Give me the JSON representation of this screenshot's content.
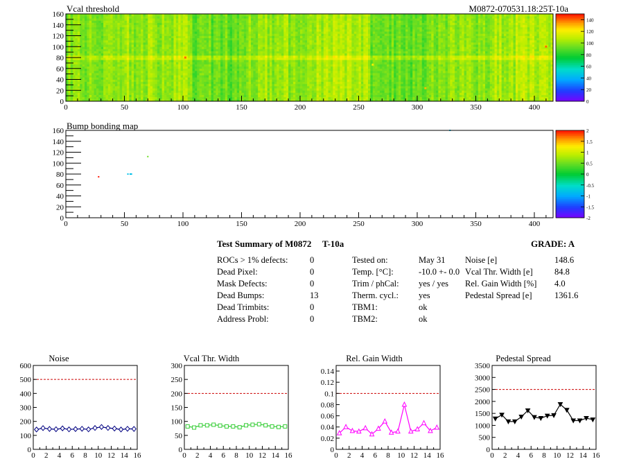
{
  "header": {
    "vcal_title": "Vcal threshold",
    "module_run": "M0872-070531.18:25T-10a",
    "bump_title": "Bump bonding map"
  },
  "colors": {
    "reference_line": "#cc0000",
    "noise_series": "#000080",
    "vcal_width_series": "#33cc33",
    "gain_width_series": "#ff00ff",
    "pedestal_series": "#000000"
  },
  "summary": {
    "title_left": "Test Summary of M0872",
    "title_mid": "T-10a",
    "grade_label": "GRADE:  A",
    "defects": [
      {
        "label": "ROCs > 1% defects:",
        "value": "0"
      },
      {
        "label": "Dead Pixel:",
        "value": "0"
      },
      {
        "label": "Mask Defects:",
        "value": "0"
      },
      {
        "label": "Dead Bumps:",
        "value": "13"
      },
      {
        "label": "Dead Trimbits:",
        "value": "0"
      },
      {
        "label": "Address Probl:",
        "value": "0"
      }
    ],
    "conditions": [
      {
        "label": "Tested on:",
        "value": "May 31"
      },
      {
        "label": "Temp. [°C]:",
        "value": "-10.0 +- 0.0"
      },
      {
        "label": "Trim / phCal:",
        "value": "yes / yes"
      },
      {
        "label": "Therm. cycl.:",
        "value": "yes"
      },
      {
        "label": "TBM1:",
        "value": "ok"
      },
      {
        "label": "TBM2:",
        "value": "ok"
      }
    ],
    "metrics": [
      {
        "label": "Noise [e]",
        "value": "148.6"
      },
      {
        "label": "Vcal Thr. Width [e]",
        "value": "84.8"
      },
      {
        "label": "Rel. Gain Width [%]",
        "value": "4.0"
      },
      {
        "label": "Pedestal Spread [e]",
        "value": "1361.6"
      }
    ]
  },
  "chart_data": [
    {
      "type": "heatmap",
      "title": "Vcal threshold",
      "x_ticks": [
        0,
        50,
        100,
        150,
        200,
        250,
        300,
        350,
        400
      ],
      "y_ticks": [
        0,
        20,
        40,
        60,
        80,
        100,
        120,
        140,
        160
      ],
      "xlim": [
        0,
        416
      ],
      "ylim": [
        0,
        160
      ],
      "colorbar_ticks": [
        0,
        20,
        40,
        60,
        80,
        100,
        120,
        140
      ],
      "colorbar_range": [
        0,
        150
      ],
      "typical_value": 100,
      "hotspots": [
        {
          "x": 102,
          "y": 80,
          "v": 140
        },
        {
          "x": 262,
          "y": 67,
          "v": 120
        },
        {
          "x": 307,
          "y": 24,
          "v": 130
        },
        {
          "x": 410,
          "y": 100,
          "v": 140
        }
      ]
    },
    {
      "type": "heatmap",
      "title": "Bump bonding map",
      "x_ticks": [
        0,
        50,
        100,
        150,
        200,
        250,
        300,
        350,
        400
      ],
      "y_ticks": [
        0,
        20,
        40,
        60,
        80,
        100,
        120,
        140,
        160
      ],
      "xlim": [
        0,
        416
      ],
      "ylim": [
        0,
        160
      ],
      "colorbar_ticks": [
        -2,
        -1.5,
        -1,
        -0.5,
        0,
        0.5,
        1,
        1.5,
        2
      ],
      "colorbar_range": [
        -2,
        2
      ],
      "points": [
        {
          "x": 28,
          "y": 75,
          "v": 2
        },
        {
          "x": 53,
          "y": 80,
          "v": -0.8
        },
        {
          "x": 55,
          "y": 80,
          "v": -0.8
        },
        {
          "x": 56,
          "y": 80,
          "v": -0.8
        },
        {
          "x": 70,
          "y": 112,
          "v": 0.5
        },
        {
          "x": 328,
          "y": 160,
          "v": -0.8
        }
      ]
    },
    {
      "type": "line",
      "title": "Noise",
      "x": [
        0.5,
        1.5,
        2.5,
        3.5,
        4.5,
        5.5,
        6.5,
        7.5,
        8.5,
        9.5,
        10.5,
        11.5,
        12.5,
        13.5,
        14.5,
        15.5
      ],
      "values": [
        142,
        152,
        146,
        144,
        150,
        143,
        145,
        147,
        143,
        153,
        160,
        153,
        149,
        142,
        147,
        146
      ],
      "xlim": [
        0,
        16
      ],
      "ylim": [
        0,
        600
      ],
      "x_ticks": [
        0,
        2,
        4,
        6,
        8,
        10,
        12,
        14,
        16
      ],
      "y_ticks": [
        0,
        100,
        200,
        300,
        400,
        500,
        600
      ],
      "reference_line": 500,
      "marker": "diamond"
    },
    {
      "type": "line",
      "title": "Vcal Thr. Width",
      "x": [
        0.5,
        1.5,
        2.5,
        3.5,
        4.5,
        5.5,
        6.5,
        7.5,
        8.5,
        9.5,
        10.5,
        11.5,
        12.5,
        13.5,
        14.5,
        15.5
      ],
      "values": [
        82,
        78,
        86,
        86,
        88,
        85,
        82,
        82,
        79,
        86,
        88,
        90,
        86,
        82,
        80,
        82
      ],
      "xlim": [
        0,
        16
      ],
      "ylim": [
        0,
        300
      ],
      "x_ticks": [
        0,
        2,
        4,
        6,
        8,
        10,
        12,
        14,
        16
      ],
      "y_ticks": [
        0,
        50,
        100,
        150,
        200,
        250,
        300
      ],
      "reference_line": 200,
      "marker": "square"
    },
    {
      "type": "line",
      "title": "Rel. Gain Width",
      "x": [
        0.5,
        1.5,
        2.5,
        3.5,
        4.5,
        5.5,
        6.5,
        7.5,
        8.5,
        9.5,
        10.5,
        11.5,
        12.5,
        13.5,
        14.5,
        15.5
      ],
      "values": [
        0.029,
        0.04,
        0.033,
        0.032,
        0.038,
        0.027,
        0.037,
        0.05,
        0.03,
        0.032,
        0.08,
        0.032,
        0.036,
        0.047,
        0.033,
        0.039
      ],
      "xlim": [
        0,
        16
      ],
      "ylim": [
        0,
        0.15
      ],
      "x_ticks": [
        0,
        2,
        4,
        6,
        8,
        10,
        12,
        14,
        16
      ],
      "y_ticks": [
        0,
        0.02,
        0.04,
        0.06,
        0.08,
        0.1,
        0.12,
        0.14
      ],
      "reference_line": 0.1,
      "marker": "triangle"
    },
    {
      "type": "line",
      "title": "Pedestal Spread",
      "x": [
        0.5,
        1.5,
        2.5,
        3.5,
        4.5,
        5.5,
        6.5,
        7.5,
        8.5,
        9.5,
        10.5,
        11.5,
        12.5,
        13.5,
        14.5,
        15.5
      ],
      "values": [
        1280,
        1440,
        1160,
        1160,
        1360,
        1620,
        1340,
        1300,
        1400,
        1420,
        1880,
        1640,
        1200,
        1200,
        1300,
        1240
      ],
      "xlim": [
        0,
        16
      ],
      "ylim": [
        0,
        3500
      ],
      "x_ticks": [
        0,
        2,
        4,
        6,
        8,
        10,
        12,
        14,
        16
      ],
      "y_ticks": [
        0,
        500,
        1000,
        1500,
        2000,
        2500,
        3000,
        3500
      ],
      "reference_line": 2500,
      "marker": "triangle-down"
    }
  ]
}
